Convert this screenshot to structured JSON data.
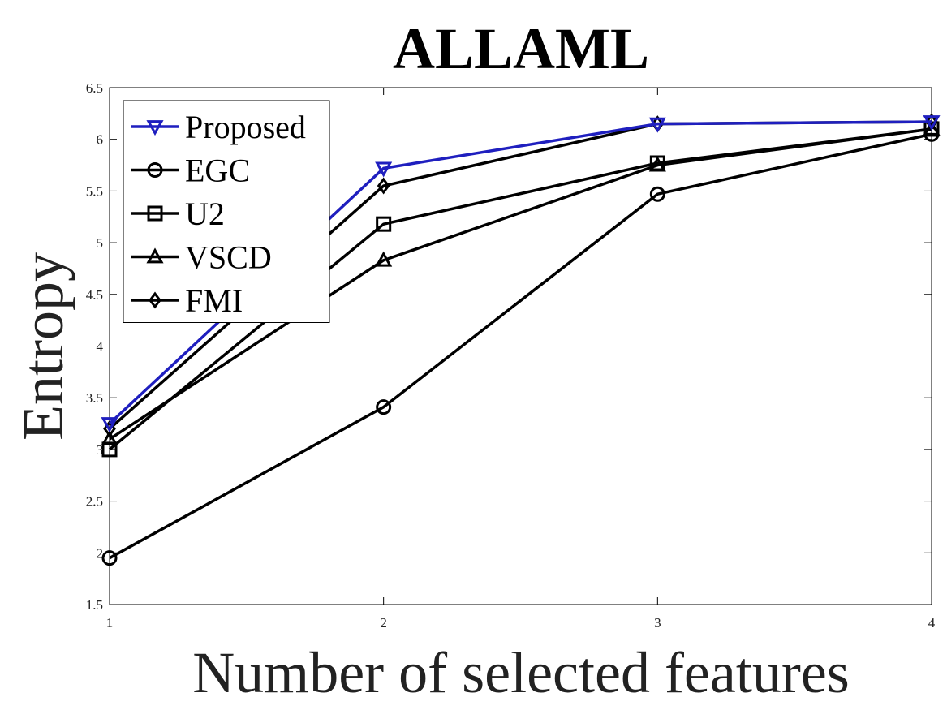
{
  "chart_data": {
    "type": "line",
    "title": "ALLAML",
    "xlabel": "Number of selected features",
    "ylabel": "Entropy",
    "x": [
      1,
      2,
      3,
      4
    ],
    "xlim": [
      1,
      4
    ],
    "ylim": [
      1.5,
      6.5
    ],
    "xticks": [
      "1",
      "2",
      "3",
      "4"
    ],
    "yticks": [
      "1.5",
      "2",
      "2.5",
      "3",
      "3.5",
      "4",
      "4.5",
      "5",
      "5.5",
      "6",
      "6.5"
    ],
    "grid": false,
    "legend_position": "top-left",
    "series": [
      {
        "name": "Proposed",
        "marker": "triangle-down",
        "color": "#1f1fbf",
        "values": [
          3.25,
          5.72,
          6.15,
          6.17
        ]
      },
      {
        "name": "EGC",
        "marker": "circle",
        "color": "#000000",
        "values": [
          1.95,
          3.41,
          5.47,
          6.05
        ]
      },
      {
        "name": "U2",
        "marker": "square",
        "color": "#000000",
        "values": [
          3.0,
          5.18,
          5.77,
          6.1
        ]
      },
      {
        "name": "VSCD",
        "marker": "triangle-up",
        "color": "#000000",
        "values": [
          3.1,
          4.83,
          5.75,
          6.1
        ]
      },
      {
        "name": "FMI",
        "marker": "diamond",
        "color": "#000000",
        "values": [
          3.2,
          5.55,
          6.15,
          6.17
        ]
      }
    ]
  }
}
